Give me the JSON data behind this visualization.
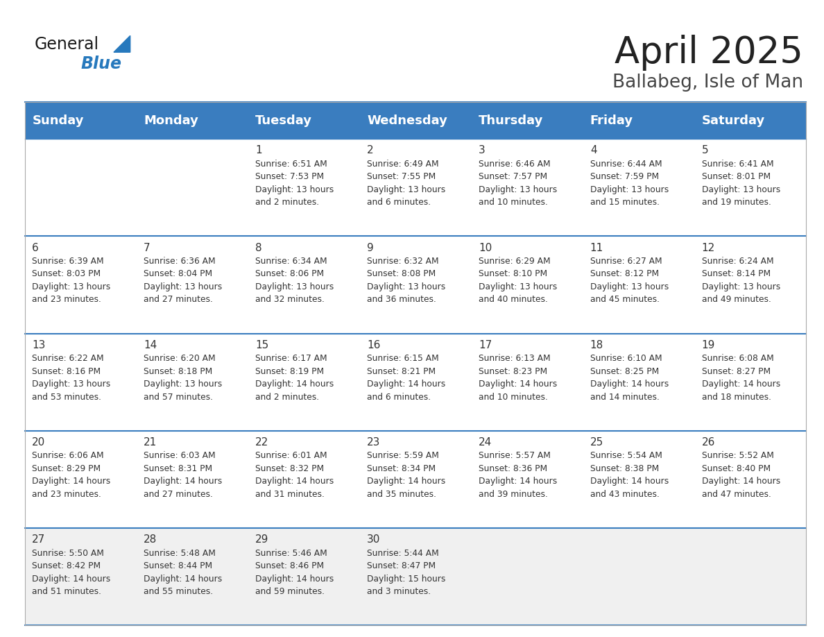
{
  "title": "April 2025",
  "subtitle": "Ballabeg, Isle of Man",
  "header_bg": "#3a7dbf",
  "header_text_color": "#ffffff",
  "days_of_week": [
    "Sunday",
    "Monday",
    "Tuesday",
    "Wednesday",
    "Thursday",
    "Friday",
    "Saturday"
  ],
  "weeks": [
    [
      {
        "day": null,
        "info": null
      },
      {
        "day": null,
        "info": null
      },
      {
        "day": 1,
        "info": "Sunrise: 6:51 AM\nSunset: 7:53 PM\nDaylight: 13 hours\nand 2 minutes."
      },
      {
        "day": 2,
        "info": "Sunrise: 6:49 AM\nSunset: 7:55 PM\nDaylight: 13 hours\nand 6 minutes."
      },
      {
        "day": 3,
        "info": "Sunrise: 6:46 AM\nSunset: 7:57 PM\nDaylight: 13 hours\nand 10 minutes."
      },
      {
        "day": 4,
        "info": "Sunrise: 6:44 AM\nSunset: 7:59 PM\nDaylight: 13 hours\nand 15 minutes."
      },
      {
        "day": 5,
        "info": "Sunrise: 6:41 AM\nSunset: 8:01 PM\nDaylight: 13 hours\nand 19 minutes."
      }
    ],
    [
      {
        "day": 6,
        "info": "Sunrise: 6:39 AM\nSunset: 8:03 PM\nDaylight: 13 hours\nand 23 minutes."
      },
      {
        "day": 7,
        "info": "Sunrise: 6:36 AM\nSunset: 8:04 PM\nDaylight: 13 hours\nand 27 minutes."
      },
      {
        "day": 8,
        "info": "Sunrise: 6:34 AM\nSunset: 8:06 PM\nDaylight: 13 hours\nand 32 minutes."
      },
      {
        "day": 9,
        "info": "Sunrise: 6:32 AM\nSunset: 8:08 PM\nDaylight: 13 hours\nand 36 minutes."
      },
      {
        "day": 10,
        "info": "Sunrise: 6:29 AM\nSunset: 8:10 PM\nDaylight: 13 hours\nand 40 minutes."
      },
      {
        "day": 11,
        "info": "Sunrise: 6:27 AM\nSunset: 8:12 PM\nDaylight: 13 hours\nand 45 minutes."
      },
      {
        "day": 12,
        "info": "Sunrise: 6:24 AM\nSunset: 8:14 PM\nDaylight: 13 hours\nand 49 minutes."
      }
    ],
    [
      {
        "day": 13,
        "info": "Sunrise: 6:22 AM\nSunset: 8:16 PM\nDaylight: 13 hours\nand 53 minutes."
      },
      {
        "day": 14,
        "info": "Sunrise: 6:20 AM\nSunset: 8:18 PM\nDaylight: 13 hours\nand 57 minutes."
      },
      {
        "day": 15,
        "info": "Sunrise: 6:17 AM\nSunset: 8:19 PM\nDaylight: 14 hours\nand 2 minutes."
      },
      {
        "day": 16,
        "info": "Sunrise: 6:15 AM\nSunset: 8:21 PM\nDaylight: 14 hours\nand 6 minutes."
      },
      {
        "day": 17,
        "info": "Sunrise: 6:13 AM\nSunset: 8:23 PM\nDaylight: 14 hours\nand 10 minutes."
      },
      {
        "day": 18,
        "info": "Sunrise: 6:10 AM\nSunset: 8:25 PM\nDaylight: 14 hours\nand 14 minutes."
      },
      {
        "day": 19,
        "info": "Sunrise: 6:08 AM\nSunset: 8:27 PM\nDaylight: 14 hours\nand 18 minutes."
      }
    ],
    [
      {
        "day": 20,
        "info": "Sunrise: 6:06 AM\nSunset: 8:29 PM\nDaylight: 14 hours\nand 23 minutes."
      },
      {
        "day": 21,
        "info": "Sunrise: 6:03 AM\nSunset: 8:31 PM\nDaylight: 14 hours\nand 27 minutes."
      },
      {
        "day": 22,
        "info": "Sunrise: 6:01 AM\nSunset: 8:32 PM\nDaylight: 14 hours\nand 31 minutes."
      },
      {
        "day": 23,
        "info": "Sunrise: 5:59 AM\nSunset: 8:34 PM\nDaylight: 14 hours\nand 35 minutes."
      },
      {
        "day": 24,
        "info": "Sunrise: 5:57 AM\nSunset: 8:36 PM\nDaylight: 14 hours\nand 39 minutes."
      },
      {
        "day": 25,
        "info": "Sunrise: 5:54 AM\nSunset: 8:38 PM\nDaylight: 14 hours\nand 43 minutes."
      },
      {
        "day": 26,
        "info": "Sunrise: 5:52 AM\nSunset: 8:40 PM\nDaylight: 14 hours\nand 47 minutes."
      }
    ],
    [
      {
        "day": 27,
        "info": "Sunrise: 5:50 AM\nSunset: 8:42 PM\nDaylight: 14 hours\nand 51 minutes."
      },
      {
        "day": 28,
        "info": "Sunrise: 5:48 AM\nSunset: 8:44 PM\nDaylight: 14 hours\nand 55 minutes."
      },
      {
        "day": 29,
        "info": "Sunrise: 5:46 AM\nSunset: 8:46 PM\nDaylight: 14 hours\nand 59 minutes."
      },
      {
        "day": 30,
        "info": "Sunrise: 5:44 AM\nSunset: 8:47 PM\nDaylight: 15 hours\nand 3 minutes."
      },
      {
        "day": null,
        "info": null
      },
      {
        "day": null,
        "info": null
      },
      {
        "day": null,
        "info": null
      }
    ]
  ],
  "row_bg": [
    "#ffffff",
    "#ffffff",
    "#ffffff",
    "#ffffff",
    "#f0f0f0"
  ],
  "cell_text_color": "#333333",
  "separator_color": "#3a7dbf",
  "title_color": "#222222",
  "subtitle_color": "#444444",
  "title_fontsize": 38,
  "subtitle_fontsize": 19,
  "day_number_fontsize": 11,
  "info_fontsize": 8.8,
  "header_fontsize": 13,
  "logo_general_color": "#1a1a1a",
  "logo_blue_color": "#2779bd",
  "logo_triangle_color": "#2779bd"
}
